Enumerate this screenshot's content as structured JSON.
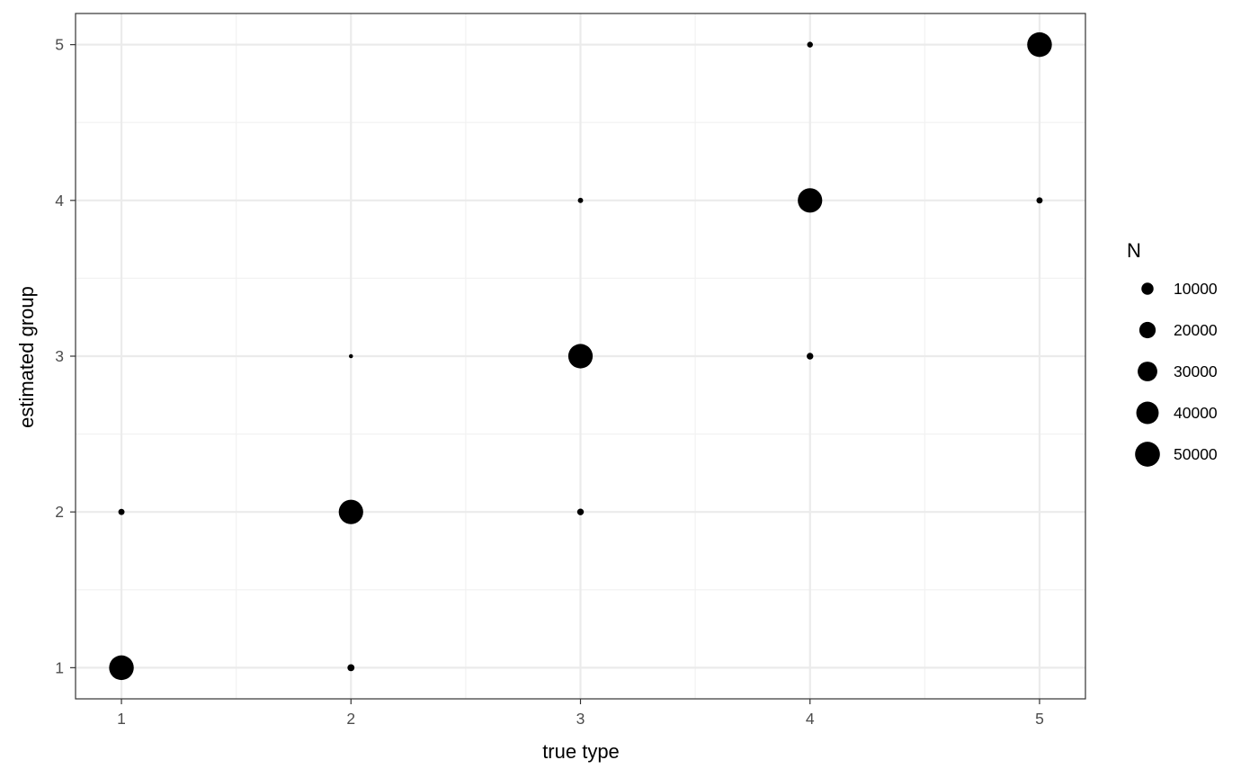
{
  "chart_data": {
    "type": "scatter",
    "xlabel": "true type",
    "ylabel": "estimated group",
    "xlim": [
      0.8,
      5.2
    ],
    "ylim": [
      0.8,
      5.2
    ],
    "x_ticks": [
      "1",
      "2",
      "3",
      "4",
      "5"
    ],
    "y_ticks": [
      "1",
      "2",
      "3",
      "4",
      "5"
    ],
    "grid": true,
    "size_legend": {
      "title": "N",
      "position": "right",
      "entries": [
        {
          "label": "10000",
          "value": 10000
        },
        {
          "label": "20000",
          "value": 20000
        },
        {
          "label": "30000",
          "value": 30000
        },
        {
          "label": "40000",
          "value": 40000
        },
        {
          "label": "50000",
          "value": 50000
        }
      ]
    },
    "points": [
      {
        "x": 1,
        "y": 1,
        "n": 55000
      },
      {
        "x": 1,
        "y": 2,
        "n": 3500
      },
      {
        "x": 2,
        "y": 1,
        "n": 4500
      },
      {
        "x": 2,
        "y": 2,
        "n": 54000
      },
      {
        "x": 2,
        "y": 3,
        "n": 1500
      },
      {
        "x": 3,
        "y": 2,
        "n": 4000
      },
      {
        "x": 3,
        "y": 3,
        "n": 54000
      },
      {
        "x": 3,
        "y": 4,
        "n": 2500
      },
      {
        "x": 4,
        "y": 3,
        "n": 4000
      },
      {
        "x": 4,
        "y": 4,
        "n": 54000
      },
      {
        "x": 4,
        "y": 5,
        "n": 3000
      },
      {
        "x": 5,
        "y": 4,
        "n": 3500
      },
      {
        "x": 5,
        "y": 5,
        "n": 55000
      }
    ],
    "colors": {
      "point": "#000000",
      "panel_border": "#333333",
      "grid_major": "#ebebeb",
      "grid_minor": "#f2f2f2",
      "tick": "#333333"
    }
  }
}
